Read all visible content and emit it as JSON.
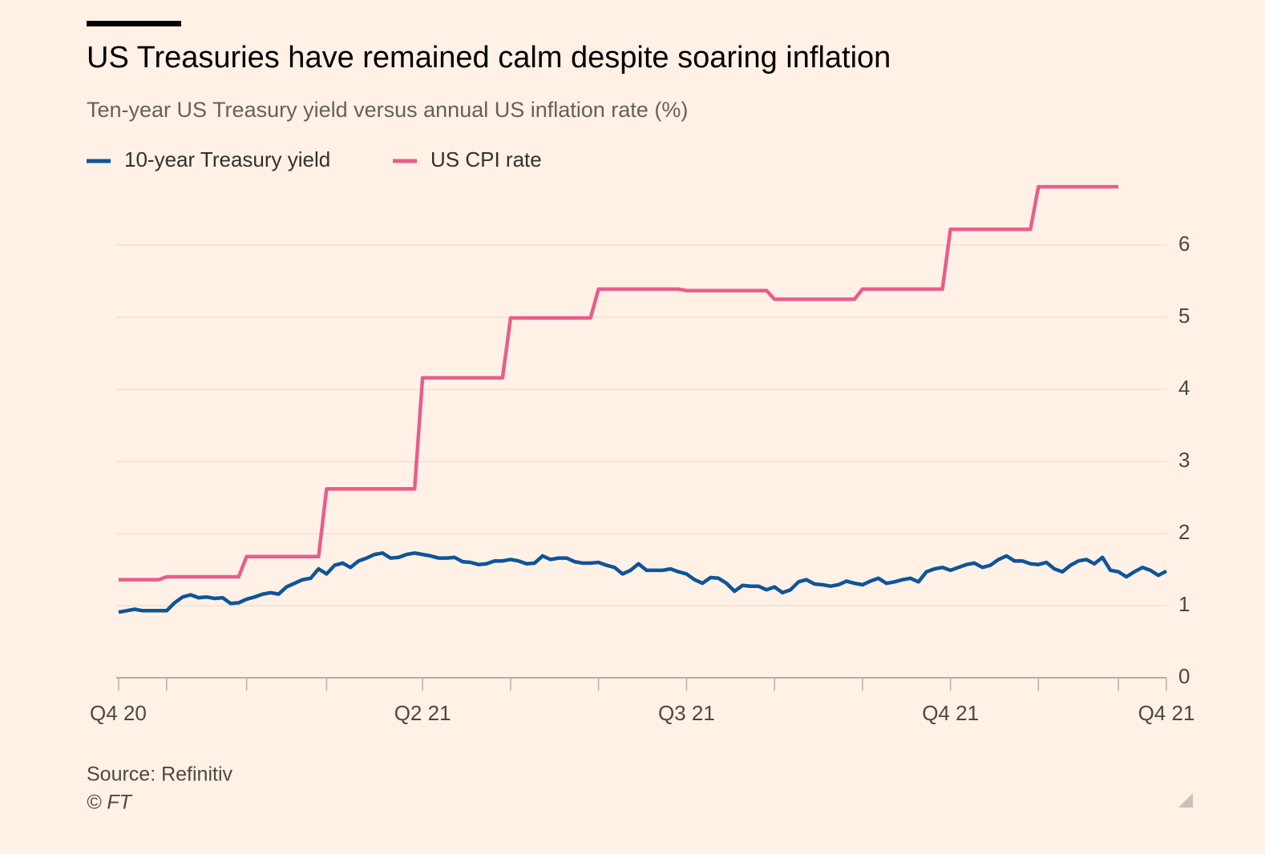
{
  "chart_data": {
    "type": "line",
    "title": "US Treasuries have remained calm despite soaring inflation",
    "subtitle": "Ten-year US Treasury yield versus annual US inflation rate (%)",
    "source": "Source: Refinitiv",
    "credit": "© FT",
    "categories": [
      "Q4 20",
      null,
      null,
      null,
      null,
      null,
      null,
      null,
      null,
      null,
      null,
      null,
      null,
      null,
      null,
      null,
      null,
      null,
      null,
      null,
      null,
      null,
      null,
      null,
      null,
      null,
      null,
      null,
      null,
      null,
      null,
      null,
      null,
      null,
      null,
      null,
      null,
      null,
      "Q2 21",
      null,
      null,
      null,
      null,
      null,
      null,
      null,
      null,
      null,
      null,
      null,
      null,
      null,
      null,
      null,
      null,
      null,
      null,
      null,
      null,
      null,
      null,
      null,
      null,
      null,
      null,
      null,
      null,
      null,
      null,
      null,
      null,
      "Q3 21",
      null,
      null,
      null,
      null,
      null,
      null,
      null,
      null,
      null,
      null,
      null,
      null,
      null,
      null,
      null,
      null,
      null,
      null,
      null,
      null,
      null,
      null,
      null,
      null,
      null,
      null,
      null,
      null,
      null,
      null,
      null,
      null,
      "Q4 21",
      null,
      null,
      null,
      null,
      null,
      null,
      null,
      null,
      null,
      null,
      null,
      null,
      null,
      null,
      null,
      null,
      null,
      null,
      null,
      null,
      null,
      null,
      null,
      null,
      null,
      null,
      "Q4 21"
    ],
    "xticks": [
      0,
      6,
      16,
      26,
      38,
      49,
      60,
      71,
      82,
      93,
      104,
      115,
      125,
      131
    ],
    "series": [
      {
        "name": "10-year Treasury yield",
        "color": "#0f5499",
        "values": [
          0.91,
          0.93,
          0.95,
          0.93,
          0.93,
          0.93,
          0.93,
          1.04,
          1.12,
          1.15,
          1.11,
          1.12,
          1.1,
          1.11,
          1.03,
          1.04,
          1.09,
          1.12,
          1.16,
          1.18,
          1.16,
          1.26,
          1.31,
          1.36,
          1.38,
          1.51,
          1.44,
          1.56,
          1.59,
          1.53,
          1.62,
          1.66,
          1.71,
          1.73,
          1.66,
          1.67,
          1.71,
          1.73,
          1.71,
          1.69,
          1.66,
          1.66,
          1.67,
          1.61,
          1.6,
          1.57,
          1.58,
          1.62,
          1.62,
          1.64,
          1.62,
          1.58,
          1.59,
          1.69,
          1.64,
          1.66,
          1.66,
          1.61,
          1.59,
          1.59,
          1.6,
          1.56,
          1.53,
          1.44,
          1.49,
          1.58,
          1.49,
          1.49,
          1.49,
          1.51,
          1.47,
          1.44,
          1.36,
          1.31,
          1.39,
          1.38,
          1.31,
          1.2,
          1.28,
          1.27,
          1.27,
          1.22,
          1.26,
          1.18,
          1.22,
          1.33,
          1.36,
          1.3,
          1.29,
          1.27,
          1.29,
          1.34,
          1.31,
          1.29,
          1.34,
          1.38,
          1.31,
          1.33,
          1.36,
          1.38,
          1.33,
          1.47,
          1.51,
          1.53,
          1.49,
          1.53,
          1.57,
          1.59,
          1.53,
          1.56,
          1.64,
          1.69,
          1.62,
          1.62,
          1.58,
          1.57,
          1.6,
          1.51,
          1.47,
          1.56,
          1.62,
          1.64,
          1.58,
          1.67,
          1.49,
          1.47,
          1.4,
          1.47,
          1.53,
          1.49,
          1.42,
          1.48
        ]
      },
      {
        "name": "US CPI rate",
        "color": "#e95d8c",
        "values": [
          1.36,
          1.36,
          1.36,
          1.36,
          1.36,
          1.36,
          1.4,
          1.4,
          1.4,
          1.4,
          1.4,
          1.4,
          1.4,
          1.4,
          1.4,
          1.4,
          1.68,
          1.68,
          1.68,
          1.68,
          1.68,
          1.68,
          1.68,
          1.68,
          1.68,
          1.68,
          2.62,
          2.62,
          2.62,
          2.62,
          2.62,
          2.62,
          2.62,
          2.62,
          2.62,
          2.62,
          2.62,
          2.62,
          4.16,
          4.16,
          4.16,
          4.16,
          4.16,
          4.16,
          4.16,
          4.16,
          4.16,
          4.16,
          4.16,
          4.99,
          4.99,
          4.99,
          4.99,
          4.99,
          4.99,
          4.99,
          4.99,
          4.99,
          4.99,
          4.99,
          5.39,
          5.39,
          5.39,
          5.39,
          5.39,
          5.39,
          5.39,
          5.39,
          5.39,
          5.39,
          5.39,
          5.37,
          5.37,
          5.37,
          5.37,
          5.37,
          5.37,
          5.37,
          5.37,
          5.37,
          5.37,
          5.37,
          5.25,
          5.25,
          5.25,
          5.25,
          5.25,
          5.25,
          5.25,
          5.25,
          5.25,
          5.25,
          5.25,
          5.39,
          5.39,
          5.39,
          5.39,
          5.39,
          5.39,
          5.39,
          5.39,
          5.39,
          5.39,
          5.39,
          6.22,
          6.22,
          6.22,
          6.22,
          6.22,
          6.22,
          6.22,
          6.22,
          6.22,
          6.22,
          6.22,
          6.81,
          6.81,
          6.81,
          6.81,
          6.81,
          6.81,
          6.81,
          6.81,
          6.81,
          6.81,
          6.81,
          null,
          null,
          null,
          null,
          null,
          null
        ]
      }
    ],
    "ylim": [
      0,
      7
    ],
    "yticks": [
      0,
      1,
      2,
      3,
      4,
      5,
      6
    ],
    "grid": true
  }
}
